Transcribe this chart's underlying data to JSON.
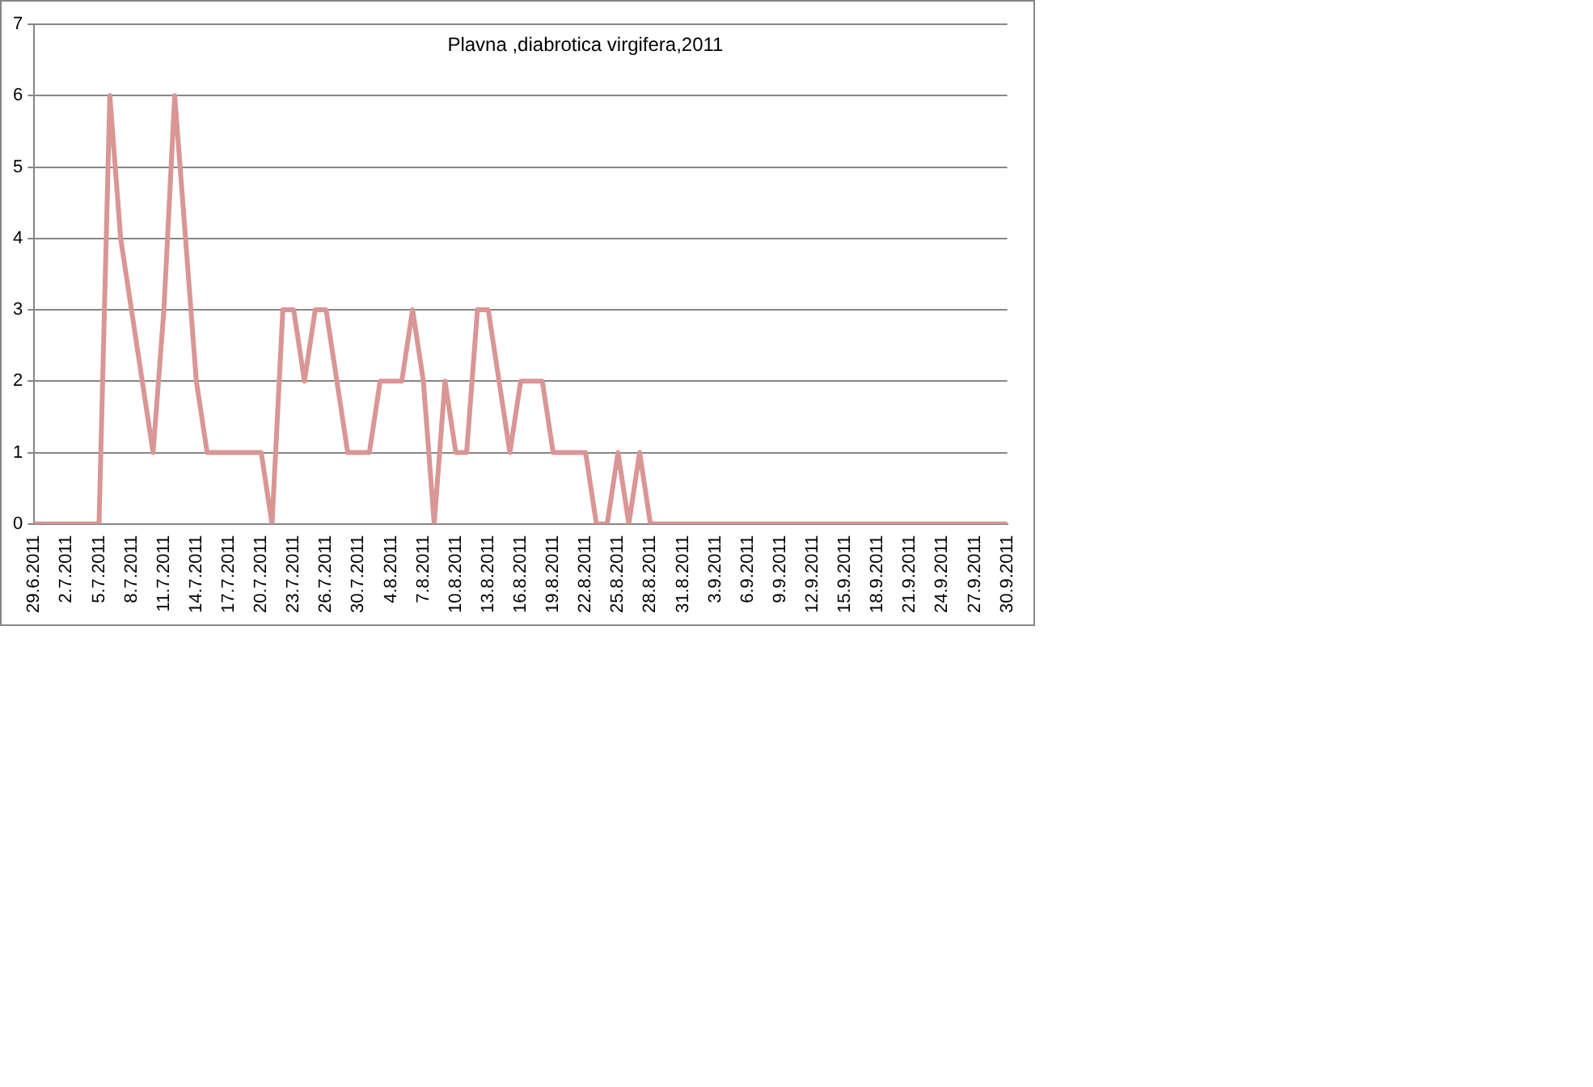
{
  "chart_data": {
    "type": "line",
    "title": "Plavna ,diabrotica virgifera,2011",
    "categories": [
      "29.6.2011",
      null,
      null,
      "2.7.2011",
      null,
      null,
      "5.7.2011",
      null,
      null,
      "8.7.2011",
      null,
      null,
      "11.7.2011",
      null,
      null,
      "14.7.2011",
      null,
      null,
      "17.7.2011",
      null,
      null,
      "20.7.2011",
      null,
      null,
      "23.7.2011",
      null,
      null,
      "26.7.2011",
      null,
      null,
      "30.7.2011",
      null,
      null,
      "4.8.2011",
      null,
      null,
      "7.8.2011",
      null,
      null,
      "10.8.2011",
      null,
      null,
      "13.8.2011",
      null,
      null,
      "16.8.2011",
      null,
      null,
      "19.8.2011",
      null,
      null,
      "22.8.2011",
      null,
      null,
      "25.8.2011",
      null,
      null,
      "28.8.2011",
      null,
      null,
      "31.8.2011",
      null,
      null,
      "3.9.2011",
      null,
      null,
      "6.9.2011",
      null,
      null,
      "9.9.2011",
      null,
      null,
      "12.9.2011",
      null,
      null,
      "15.9.2011",
      null,
      null,
      "18.9.2011",
      null,
      null,
      "21.9.2011",
      null,
      null,
      "24.9.2011",
      null,
      null,
      "27.9.2011",
      null,
      null,
      "30.9.2011"
    ],
    "series": [
      {
        "color": "#d99694",
        "values": [
          0,
          0,
          0,
          0,
          0,
          0,
          0,
          6,
          4,
          3,
          2,
          1,
          3,
          6,
          4,
          2,
          1,
          1,
          1,
          1,
          1,
          1,
          0,
          3,
          3,
          2,
          3,
          3,
          2,
          1,
          1,
          1,
          2,
          2,
          2,
          3,
          2,
          0,
          2,
          1,
          1,
          3,
          3,
          2,
          1,
          2,
          2,
          2,
          1,
          1,
          1,
          1,
          0,
          0,
          1,
          0,
          1,
          0,
          0,
          0,
          0,
          0,
          0,
          0,
          0,
          0,
          0,
          0,
          0,
          0,
          0,
          0,
          0,
          0,
          0,
          0,
          0,
          0,
          0,
          0,
          0,
          0,
          0,
          0,
          0,
          0,
          0,
          0,
          0,
          0,
          0
        ]
      }
    ],
    "ylim": [
      0,
      7
    ],
    "yticks": [
      0,
      1,
      2,
      3,
      4,
      5,
      6,
      7
    ],
    "grid": "y",
    "legend": false,
    "marker": "none",
    "line_style": "solid"
  }
}
